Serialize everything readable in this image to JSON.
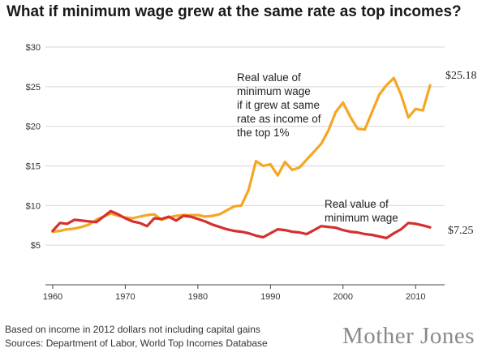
{
  "chart_data": {
    "type": "line",
    "title": "What if minimum wage grew at the same rate as top incomes?",
    "xlabel": "",
    "ylabel": "",
    "xlim": [
      1959,
      2014
    ],
    "ylim": [
      0,
      30
    ],
    "x_ticks": [
      1960,
      1970,
      1980,
      1990,
      2000,
      2010
    ],
    "x_tick_labels": [
      "1960",
      "1970",
      "1980",
      "1990",
      "2000",
      "2010"
    ],
    "y_ticks": [
      5,
      10,
      15,
      20,
      25,
      30
    ],
    "y_tick_labels": [
      "$5",
      "$10",
      "$15",
      "$20",
      "$25",
      "$30"
    ],
    "grid": "horizontal",
    "series": [
      {
        "color": "#f5a623",
        "annotation": [
          "Real value of",
          "minimum wage",
          "if it grew at same",
          "rate as income of",
          "the top 1%"
        ],
        "end_label": "$25.18",
        "x": [
          1960,
          1961,
          1962,
          1963,
          1964,
          1965,
          1966,
          1967,
          1968,
          1969,
          1970,
          1971,
          1972,
          1973,
          1974,
          1975,
          1976,
          1977,
          1978,
          1979,
          1980,
          1981,
          1982,
          1983,
          1984,
          1985,
          1986,
          1987,
          1988,
          1989,
          1990,
          1991,
          1992,
          1993,
          1994,
          1995,
          1996,
          1997,
          1998,
          1999,
          2000,
          2001,
          2002,
          2003,
          2004,
          2005,
          2006,
          2007,
          2008,
          2009,
          2010,
          2011,
          2012
        ],
        "values": [
          6.7,
          6.8,
          7.0,
          7.1,
          7.3,
          7.6,
          8.2,
          8.6,
          9.0,
          8.7,
          8.5,
          8.4,
          8.6,
          8.8,
          8.9,
          8.2,
          8.5,
          8.7,
          8.8,
          8.8,
          8.8,
          8.6,
          8.7,
          8.9,
          9.4,
          9.9,
          10.0,
          12.0,
          15.6,
          15.0,
          15.2,
          13.8,
          15.5,
          14.5,
          14.8,
          15.8,
          16.8,
          17.8,
          19.5,
          21.8,
          23.0,
          21.2,
          19.7,
          19.6,
          21.8,
          24.0,
          25.2,
          26.1,
          24.0,
          21.1,
          22.2,
          22.0,
          25.18
        ]
      },
      {
        "color": "#d62f2f",
        "annotation": [
          "Real value of",
          "minimum wage"
        ],
        "end_label": "$7.25",
        "x": [
          1960,
          1961,
          1962,
          1963,
          1964,
          1965,
          1966,
          1967,
          1968,
          1969,
          1970,
          1971,
          1972,
          1973,
          1974,
          1975,
          1976,
          1977,
          1978,
          1979,
          1980,
          1981,
          1982,
          1983,
          1984,
          1985,
          1986,
          1987,
          1988,
          1989,
          1990,
          1991,
          1992,
          1993,
          1994,
          1995,
          1996,
          1997,
          1998,
          1999,
          2000,
          2001,
          2002,
          2003,
          2004,
          2005,
          2006,
          2007,
          2008,
          2009,
          2010,
          2011,
          2012
        ],
        "values": [
          6.8,
          7.8,
          7.7,
          8.2,
          8.1,
          8.0,
          7.9,
          8.6,
          9.3,
          8.9,
          8.4,
          8.0,
          7.8,
          7.4,
          8.4,
          8.3,
          8.6,
          8.1,
          8.7,
          8.6,
          8.3,
          8.0,
          7.6,
          7.3,
          7.0,
          6.8,
          6.7,
          6.5,
          6.2,
          6.0,
          6.5,
          7.0,
          6.9,
          6.7,
          6.6,
          6.4,
          6.9,
          7.4,
          7.3,
          7.2,
          6.9,
          6.7,
          6.6,
          6.4,
          6.3,
          6.1,
          5.9,
          6.5,
          7.0,
          7.8,
          7.7,
          7.5,
          7.25
        ]
      }
    ]
  },
  "footnote": {
    "line1": "Based on income in 2012 dollars not including capital gains",
    "line2": "Sources: Department of Labor, World Top Incomes Database"
  },
  "brand": "Mother Jones"
}
